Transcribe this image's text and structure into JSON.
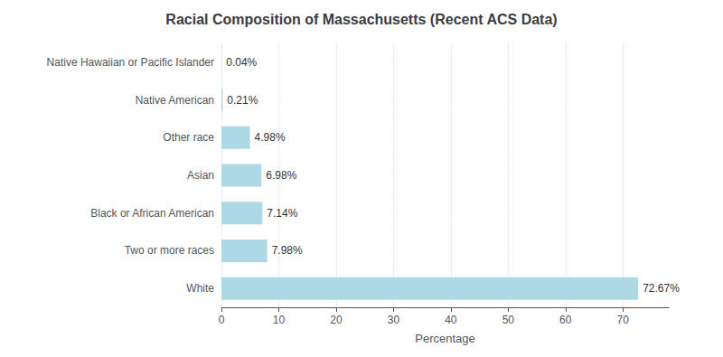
{
  "chart_data": {
    "type": "bar",
    "orientation": "horizontal",
    "title": "Racial Composition of Massachusetts (Recent ACS Data)",
    "xlabel": "Percentage",
    "categories": [
      "White",
      "Two or more races",
      "Black or African American",
      "Asian",
      "Other race",
      "Native American",
      "Native Hawaiian or Pacific Islander"
    ],
    "values": [
      72.67,
      7.98,
      7.14,
      6.98,
      4.98,
      0.21,
      0.04
    ],
    "value_labels": [
      "72.67%",
      "7.98%",
      "7.14%",
      "6.98%",
      "4.98%",
      "0.21%",
      "0.04%"
    ],
    "color": "#ADD8E6",
    "xlim": [
      0,
      78
    ],
    "xticks": [
      0,
      10,
      20,
      30,
      40,
      50,
      60,
      70
    ],
    "grid": true,
    "data_labels": true
  }
}
